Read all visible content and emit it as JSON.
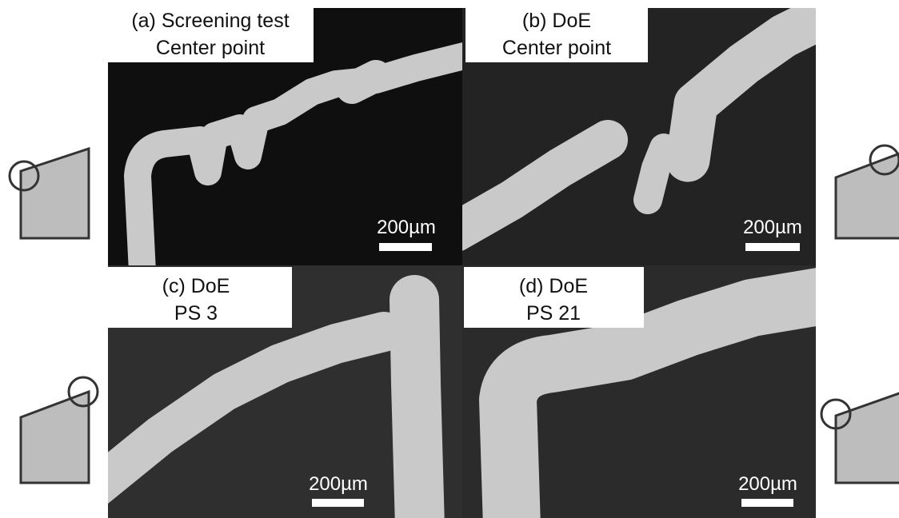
{
  "panels": [
    {
      "label_lines": [
        "(a) Screening test",
        "Center point"
      ],
      "scale": "200µm"
    },
    {
      "label_lines": [
        "(b) DoE",
        "Center point"
      ],
      "scale": "200µm"
    },
    {
      "label_lines": [
        "(c) DoE",
        "PS 3"
      ],
      "scale": "200µm"
    },
    {
      "label_lines": [
        "(d) DoE",
        "PS 21"
      ],
      "scale": "200µm"
    }
  ]
}
